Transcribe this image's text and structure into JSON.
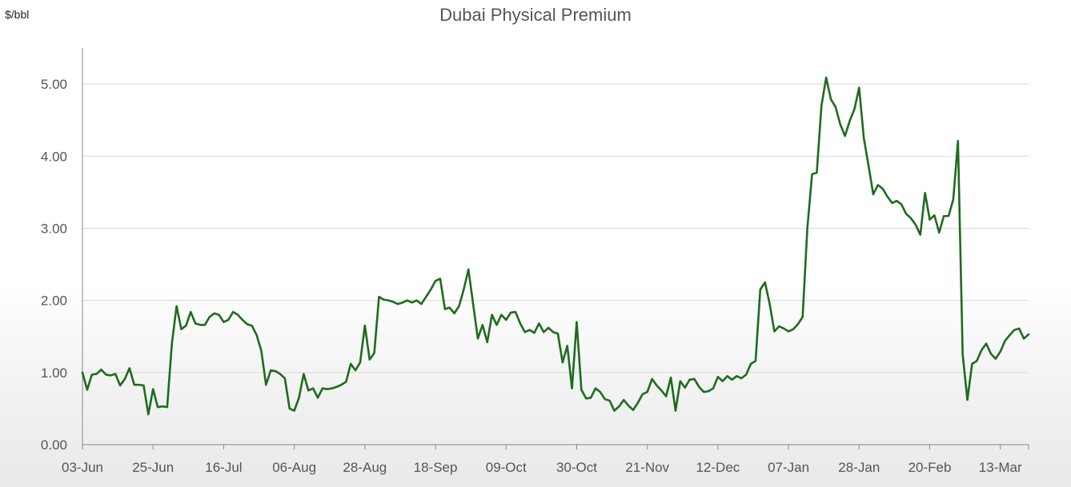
{
  "chart_data": {
    "type": "line",
    "title": "Dubai Physical Premium",
    "ylabel": "$/bbl",
    "xlabel": "",
    "ylim": [
      0,
      5.5
    ],
    "yticks": [
      "0.00",
      "1.00",
      "2.00",
      "3.00",
      "4.00",
      "5.00"
    ],
    "ytick_values": [
      0,
      1,
      2,
      3,
      4,
      5
    ],
    "xticks": [
      "03-Jun",
      "25-Jun",
      "16-Jul",
      "06-Aug",
      "28-Aug",
      "18-Sep",
      "09-Oct",
      "30-Oct",
      "21-Nov",
      "12-Dec",
      "07-Jan",
      "28-Jan",
      "20-Feb",
      "13-Mar"
    ],
    "grid": true,
    "colors": {
      "line": "#1e6b1e",
      "grid": "#d9d9d9",
      "axis": "#888888"
    },
    "series": [
      {
        "values": [
          1.0,
          0.76,
          0.97,
          0.98,
          1.04,
          0.97,
          0.96,
          0.98,
          0.82,
          0.91,
          1.06,
          0.83,
          0.83,
          0.82,
          0.42,
          0.77,
          0.52,
          0.53,
          0.52,
          1.4,
          1.92,
          1.6,
          1.65,
          1.84,
          1.68,
          1.66,
          1.66,
          1.77,
          1.82,
          1.8,
          1.7,
          1.73,
          1.84,
          1.8,
          1.73,
          1.67,
          1.65,
          1.52,
          1.3,
          0.83,
          1.03,
          1.02,
          0.98,
          0.92,
          0.5,
          0.47,
          0.65,
          0.98,
          0.75,
          0.78,
          0.65,
          0.78,
          0.77,
          0.78,
          0.8,
          0.83,
          0.87,
          1.12,
          1.03,
          1.14,
          1.65,
          1.18,
          1.27,
          2.05,
          2.01,
          2.0,
          1.98,
          1.95,
          1.97,
          2.0,
          1.97,
          2.0,
          1.95,
          2.05,
          2.15,
          2.27,
          2.3,
          1.88,
          1.9,
          1.82,
          1.92,
          2.15,
          2.43,
          1.95,
          1.47,
          1.66,
          1.42,
          1.8,
          1.66,
          1.8,
          1.73,
          1.83,
          1.84,
          1.68,
          1.56,
          1.59,
          1.55,
          1.68,
          1.56,
          1.62,
          1.56,
          1.54,
          1.14,
          1.37,
          0.78,
          1.7,
          0.76,
          0.64,
          0.65,
          0.78,
          0.73,
          0.63,
          0.61,
          0.47,
          0.53,
          0.62,
          0.54,
          0.48,
          0.58,
          0.7,
          0.73,
          0.91,
          0.82,
          0.75,
          0.67,
          0.93,
          0.47,
          0.88,
          0.79,
          0.9,
          0.91,
          0.8,
          0.73,
          0.74,
          0.78,
          0.94,
          0.88,
          0.95,
          0.9,
          0.95,
          0.92,
          0.97,
          1.12,
          1.16,
          2.15,
          2.25,
          1.95,
          1.57,
          1.64,
          1.61,
          1.57,
          1.6,
          1.67,
          1.77,
          3.0,
          3.75,
          3.77,
          4.7,
          5.09,
          4.79,
          4.68,
          4.44,
          4.28,
          4.49,
          4.65,
          4.95,
          4.25,
          3.87,
          3.47,
          3.6,
          3.55,
          3.44,
          3.35,
          3.38,
          3.33,
          3.2,
          3.14,
          3.05,
          2.91,
          3.49,
          3.12,
          3.18,
          2.94,
          3.17,
          3.17,
          3.4,
          4.21,
          1.25,
          0.62,
          1.12,
          1.16,
          1.31,
          1.4,
          1.26,
          1.19,
          1.29,
          1.44,
          1.52,
          1.59,
          1.61,
          1.47,
          1.53
        ]
      }
    ]
  }
}
